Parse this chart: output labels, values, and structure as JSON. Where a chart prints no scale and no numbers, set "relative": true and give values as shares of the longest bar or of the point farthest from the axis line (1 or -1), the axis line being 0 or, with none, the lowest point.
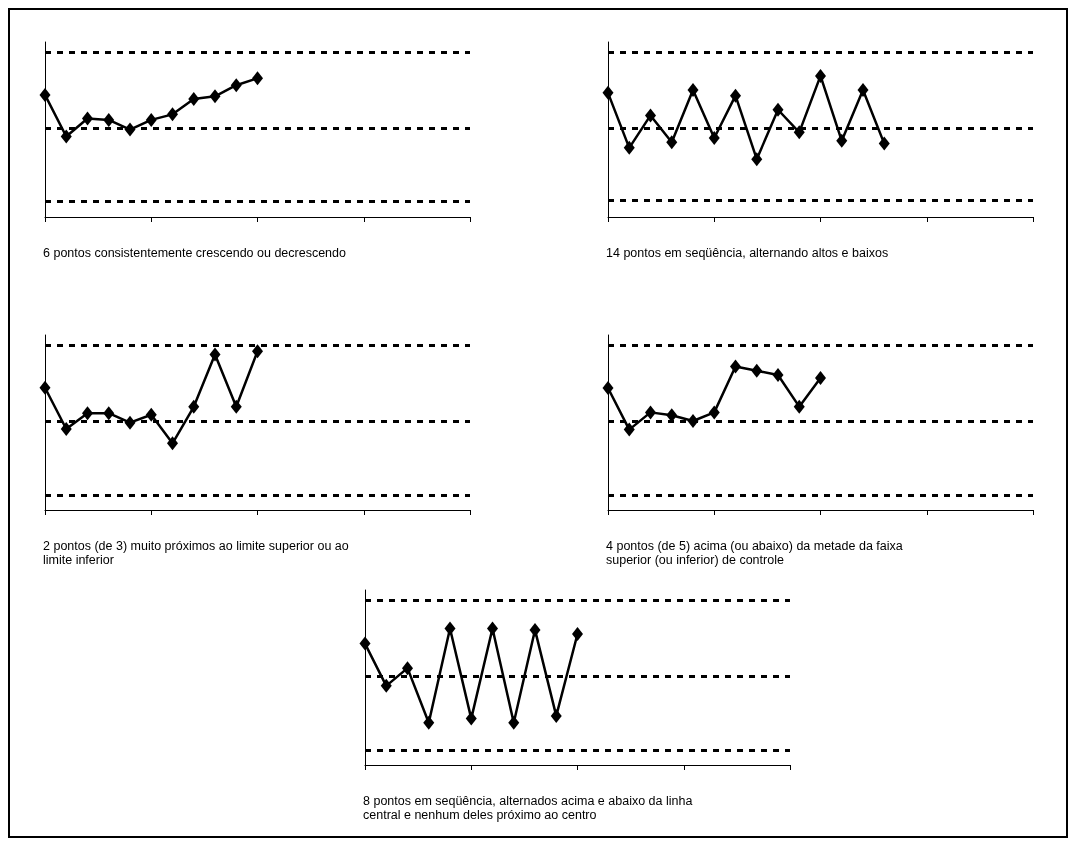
{
  "chart_data": [
    {
      "type": "line",
      "relative": true,
      "marker": "diamond",
      "categories": [
        null,
        null,
        null,
        null,
        null,
        null,
        null,
        null,
        null,
        null,
        null,
        null,
        null,
        null,
        null,
        null,
        null,
        null,
        null,
        null,
        null
      ],
      "series": [
        {
          "color": "#000000",
          "values": [
            0.88,
            0.58,
            0.71,
            0.7,
            0.63,
            0.7,
            0.74,
            0.85,
            0.87,
            0.95,
            1,
            null,
            null,
            null,
            null,
            null,
            null,
            null,
            null,
            null,
            null
          ]
        }
      ],
      "ref_lines": [
        {
          "axis": "y",
          "value": 1.19,
          "line_style": "dashed"
        },
        {
          "axis": "y",
          "value": 0.64,
          "line_style": "dashed"
        },
        {
          "axis": "y",
          "value": 0.11,
          "line_style": "dashed"
        }
      ],
      "annotations": [
        "6 pontos consistentemente crescendo ou decrescendo"
      ]
    },
    {
      "type": "line",
      "relative": true,
      "marker": "diamond",
      "categories": [
        null,
        null,
        null,
        null,
        null,
        null,
        null,
        null,
        null,
        null,
        null,
        null,
        null,
        null,
        null,
        null,
        null,
        null,
        null,
        null,
        null
      ],
      "series": [
        {
          "color": "#000000",
          "values": [
            0.88,
            0.49,
            0.72,
            0.53,
            0.9,
            0.56,
            0.86,
            0.41,
            0.76,
            0.6,
            1,
            0.54,
            0.9,
            0.52,
            null,
            null,
            null,
            null,
            null,
            null,
            null
          ]
        }
      ],
      "ref_lines": [
        {
          "axis": "y",
          "value": 1.17,
          "line_style": "dashed"
        },
        {
          "axis": "y",
          "value": 0.63,
          "line_style": "dashed"
        },
        {
          "axis": "y",
          "value": 0.12,
          "line_style": "dashed"
        }
      ],
      "annotations": [
        "14 pontos em seqüência, alternando altos e baixos"
      ]
    },
    {
      "type": "line",
      "relative": true,
      "marker": "diamond",
      "categories": [
        null,
        null,
        null,
        null,
        null,
        null,
        null,
        null,
        null,
        null,
        null,
        null,
        null,
        null,
        null,
        null,
        null,
        null,
        null,
        null,
        null
      ],
      "series": [
        {
          "color": "#000000",
          "values": [
            0.77,
            0.51,
            0.61,
            0.61,
            0.55,
            0.6,
            0.42,
            0.65,
            0.98,
            0.65,
            1,
            null,
            null,
            null,
            null,
            null,
            null,
            null,
            null,
            null,
            null
          ]
        }
      ],
      "ref_lines": [
        {
          "axis": "y",
          "value": 1.04,
          "line_style": "dashed"
        },
        {
          "axis": "y",
          "value": 0.56,
          "line_style": "dashed"
        },
        {
          "axis": "y",
          "value": 0.09,
          "line_style": "dashed"
        }
      ],
      "annotations": [
        "2 pontos (de 3) muito próximos ao limite superior ou ao limite inferior"
      ]
    },
    {
      "type": "line",
      "relative": true,
      "marker": "diamond",
      "categories": [
        null,
        null,
        null,
        null,
        null,
        null,
        null,
        null,
        null,
        null,
        null,
        null,
        null,
        null,
        null,
        null,
        null,
        null,
        null,
        null,
        null
      ],
      "series": [
        {
          "color": "#000000",
          "values": [
            0.85,
            0.56,
            0.68,
            0.66,
            0.62,
            0.68,
            1,
            0.97,
            0.94,
            0.72,
            0.92,
            null,
            null,
            null,
            null,
            null,
            null,
            null,
            null,
            null,
            null
          ]
        }
      ],
      "ref_lines": [
        {
          "axis": "y",
          "value": 1.15,
          "line_style": "dashed"
        },
        {
          "axis": "y",
          "value": 0.62,
          "line_style": "dashed"
        },
        {
          "axis": "y",
          "value": 0.1,
          "line_style": "dashed"
        }
      ],
      "annotations": [
        "4 pontos (de 5) acima (ou abaixo) da metade da faixa superior (ou inferior) de controle"
      ]
    },
    {
      "type": "line",
      "relative": true,
      "marker": "diamond",
      "categories": [
        null,
        null,
        null,
        null,
        null,
        null,
        null,
        null,
        null,
        null,
        null,
        null,
        null,
        null,
        null,
        null,
        null,
        null,
        null,
        null,
        null
      ],
      "series": [
        {
          "color": "#000000",
          "values": [
            0.89,
            0.58,
            0.71,
            0.31,
            1,
            0.34,
            1,
            0.31,
            0.99,
            0.36,
            0.96,
            null,
            null,
            null,
            null,
            null,
            null,
            null,
            null,
            null,
            null
          ]
        }
      ],
      "ref_lines": [
        {
          "axis": "y",
          "value": 1.21,
          "line_style": "dashed"
        },
        {
          "axis": "y",
          "value": 0.65,
          "line_style": "dashed"
        },
        {
          "axis": "y",
          "value": 0.11,
          "line_style": "dashed"
        }
      ],
      "annotations": [
        "8 pontos em seqüência, alternados acima e abaixo da linha central e nenhum deles próximo ao centro"
      ]
    }
  ]
}
